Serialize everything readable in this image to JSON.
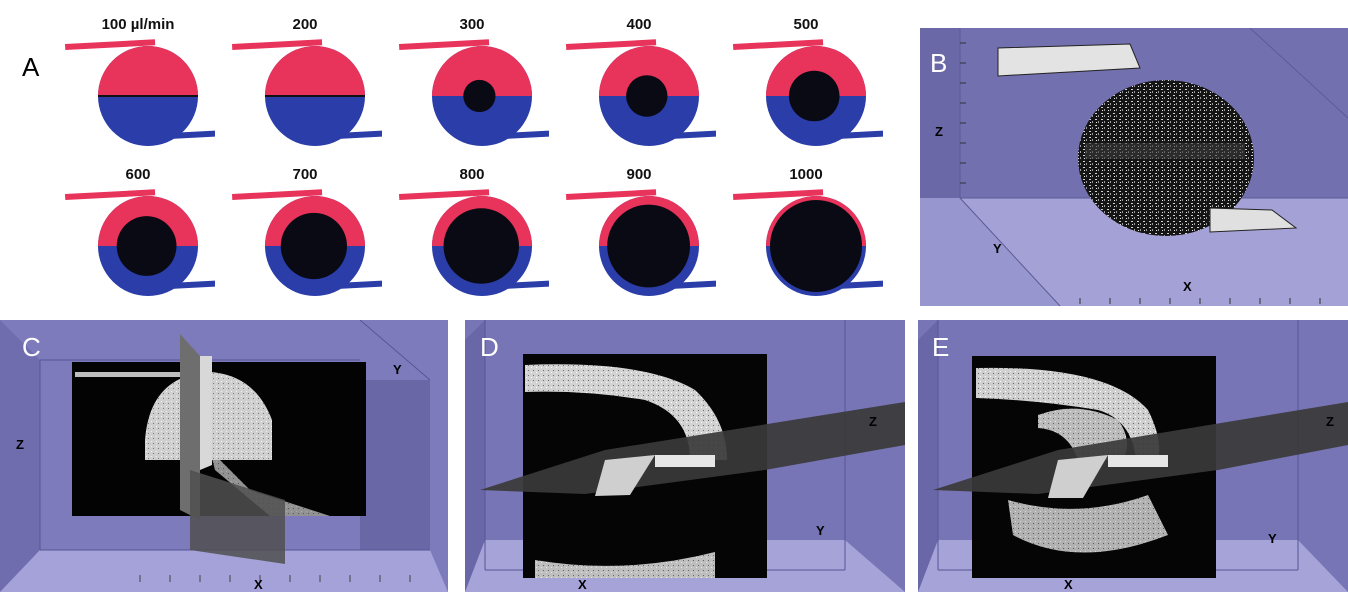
{
  "panel_a": {
    "letter": "A",
    "flow_rates": [
      "100 µl/min",
      "200",
      "300",
      "400",
      "500",
      "600",
      "700",
      "800",
      "900",
      "1000"
    ],
    "stage_levels": [
      0.0,
      0.0,
      0.35,
      0.45,
      0.55,
      0.65,
      0.72,
      0.82,
      0.9,
      1.0
    ]
  },
  "panel_b": {
    "letter": "B",
    "axis_x": "X",
    "axis_y": "Y",
    "axis_z": "Z"
  },
  "panel_c": {
    "letter": "C",
    "axis_x": "X",
    "axis_y": "Y",
    "axis_z": "Z"
  },
  "panel_d": {
    "letter": "D",
    "axis_x": "X",
    "axis_y": "Y",
    "axis_z": "Z"
  },
  "panel_e": {
    "letter": "E",
    "axis_x": "X",
    "axis_y": "Y",
    "axis_z": "Z"
  },
  "colors": {
    "red_fluid": "#e8335a",
    "blue_fluid": "#2a3da8",
    "dark_fluid": "#0a0a14",
    "viewer_bg": "#7a76b4",
    "viewer_floor": "#9c9ad0",
    "viewer_side": "#6e6aa8"
  }
}
